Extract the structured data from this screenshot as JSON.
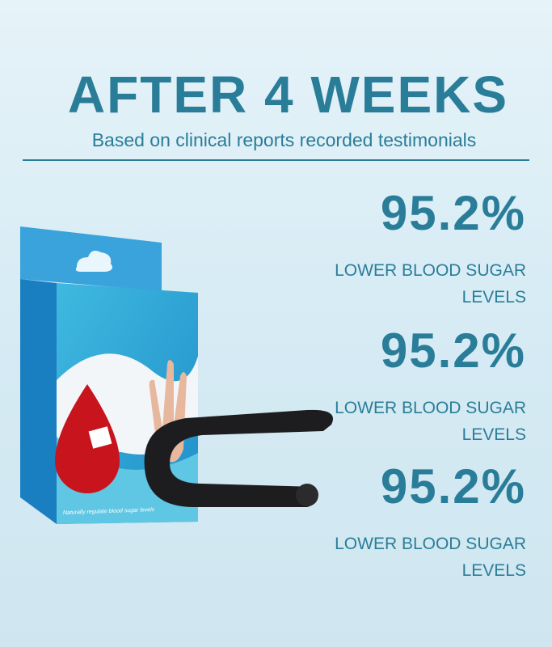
{
  "header": {
    "title": "AFTER 4 WEEKS",
    "subtitle": "Based on clinical reports recorded testimonials"
  },
  "product": {
    "box_text": "Naturally regulate blood sugar levels"
  },
  "stats": [
    {
      "value": "95.2%",
      "label": "LOWER BLOOD SUGAR LEVELS"
    },
    {
      "value": "95.2%",
      "label": "LOWER BLOOD SUGAR LEVELS"
    },
    {
      "value": "95.2%",
      "label": "LOWER BLOOD SUGAR LEVELS"
    }
  ]
}
